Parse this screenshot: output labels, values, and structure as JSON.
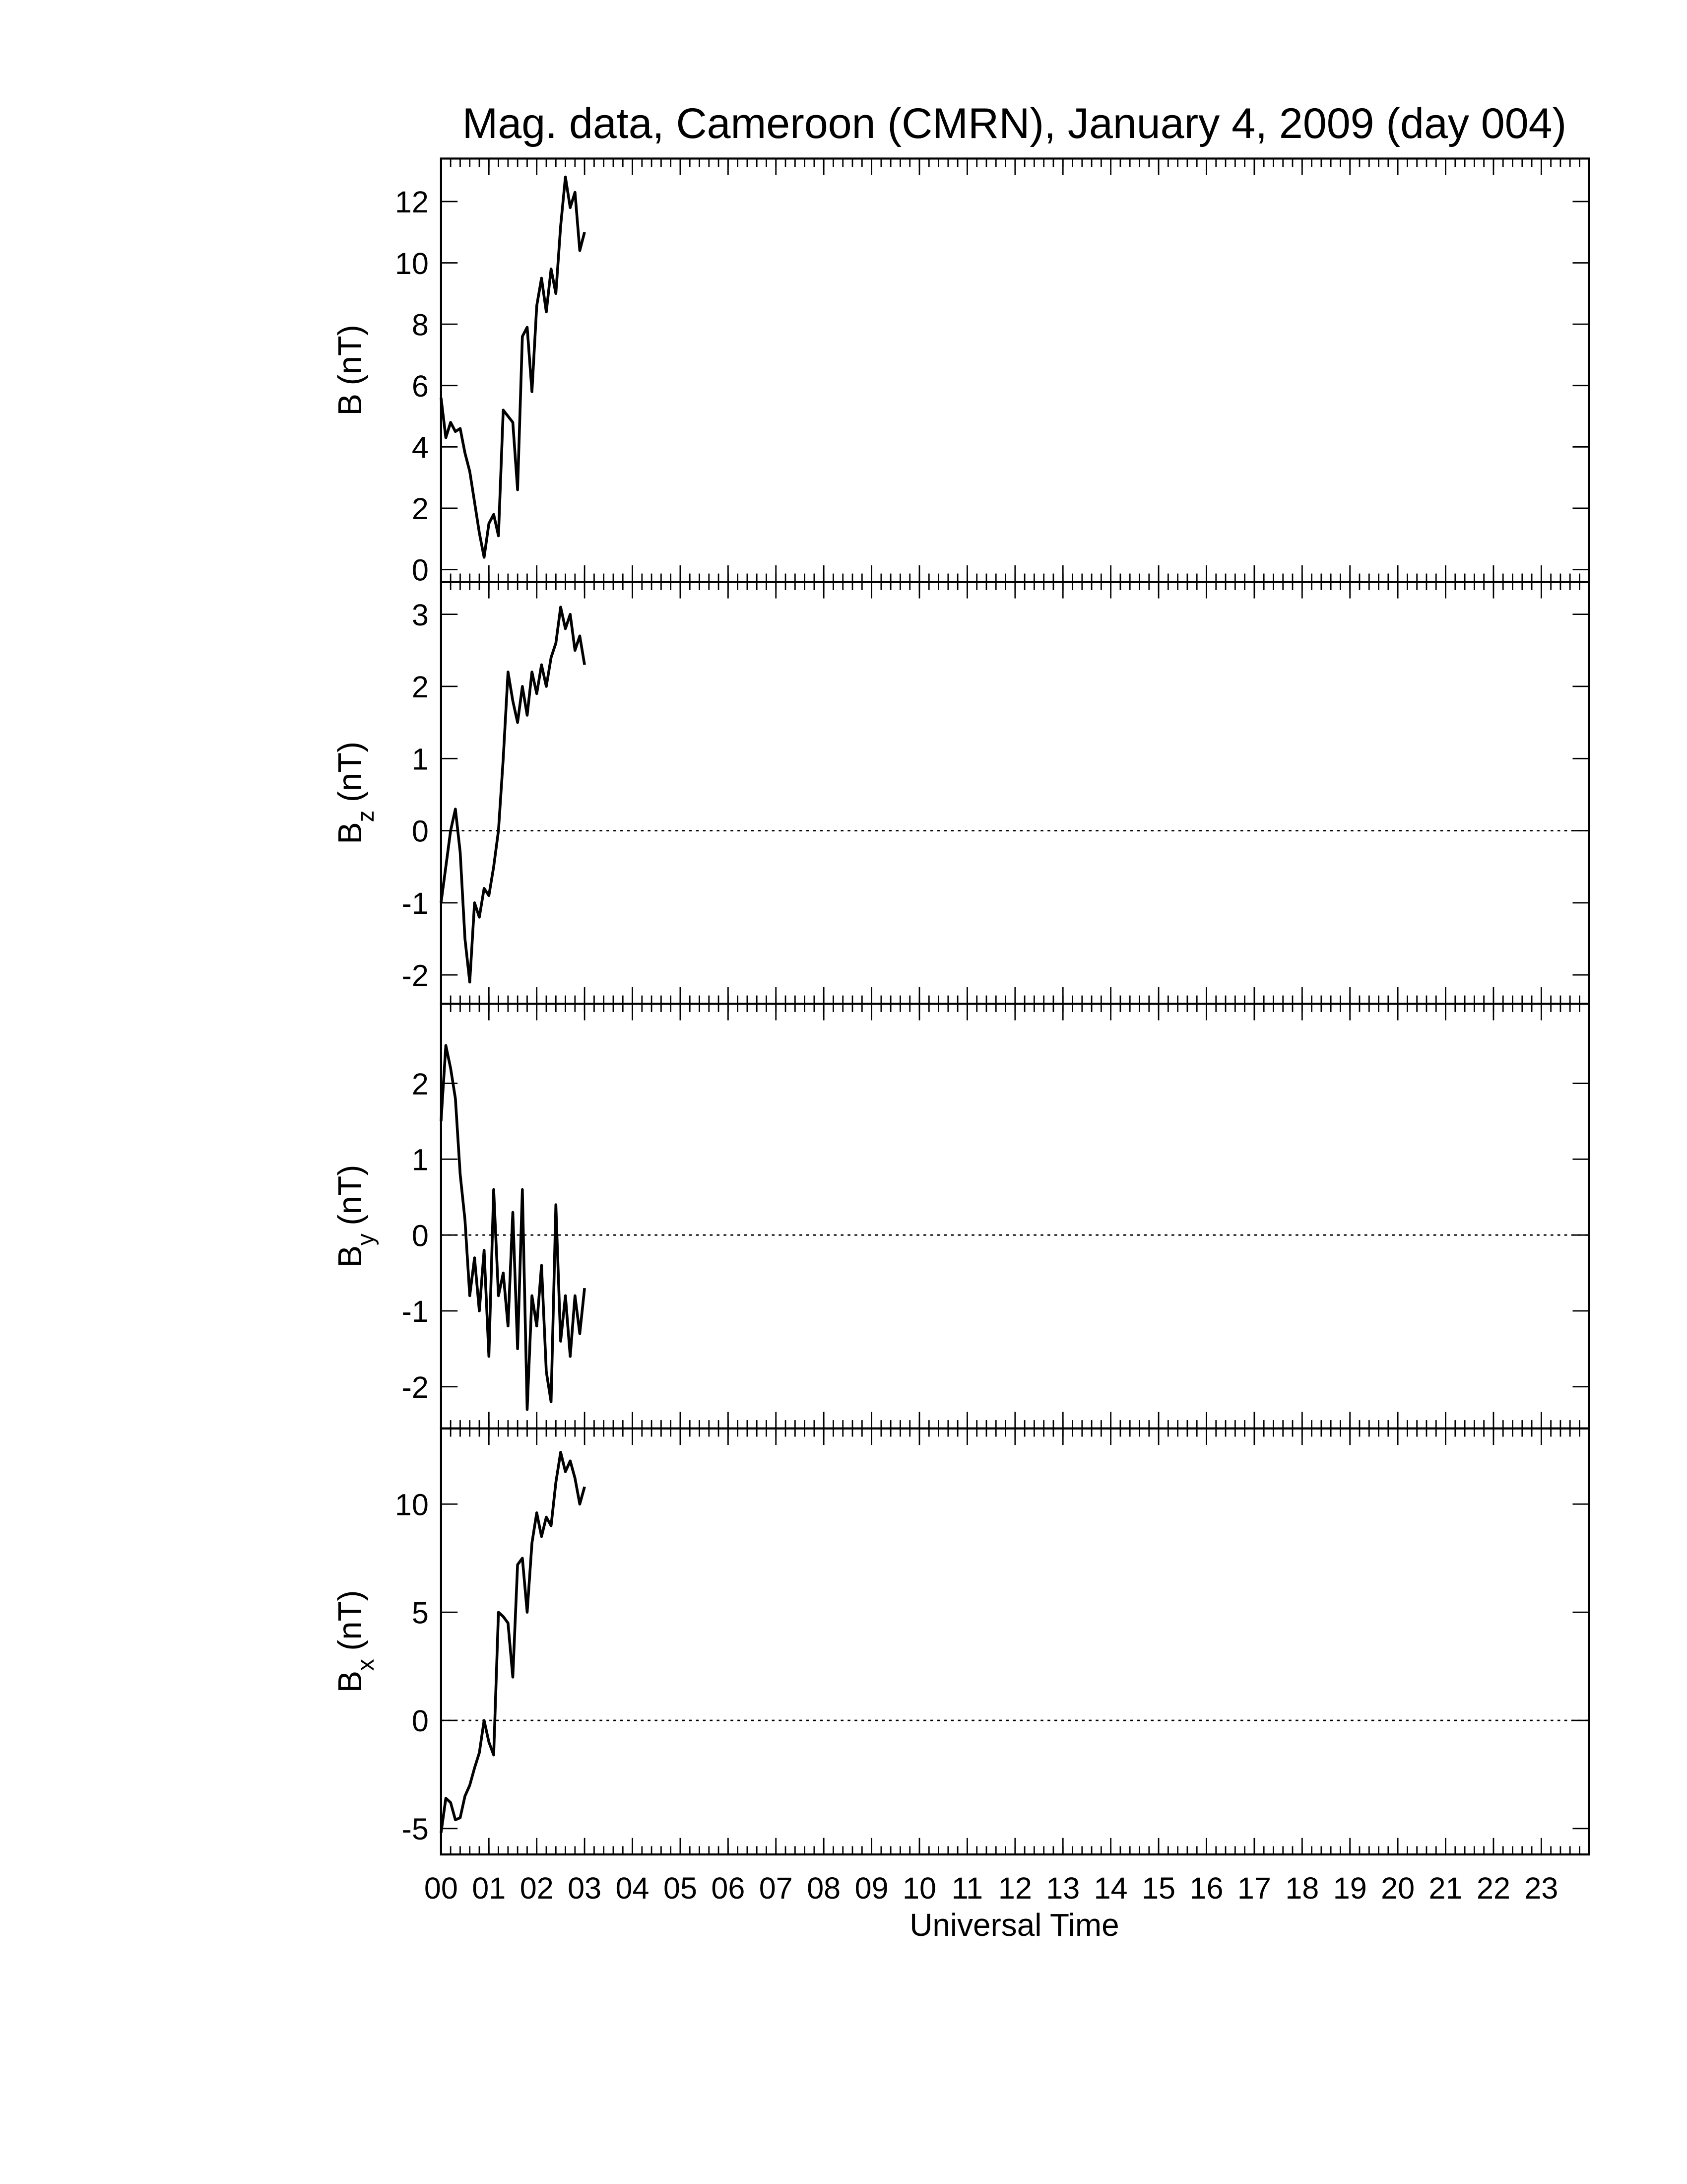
{
  "chart_data": [
    {
      "type": "line",
      "title": "Mag. data, Cameroon (CMRN), January 4, 2009 (day 004)",
      "ylabel_main": "B",
      "ylabel_unit": "(nT)",
      "xlim": [
        0,
        24
      ],
      "ylim": [
        -0.4,
        13.4
      ],
      "yticks": [
        0,
        2,
        4,
        6,
        8,
        10,
        12
      ],
      "x": [
        0,
        0.1,
        0.2,
        0.3,
        0.4,
        0.5,
        0.6,
        0.7,
        0.8,
        0.9,
        1.0,
        1.1,
        1.2,
        1.3,
        1.4,
        1.5,
        1.6,
        1.7,
        1.8,
        1.9,
        2.0,
        2.1,
        2.2,
        2.3,
        2.4,
        2.5,
        2.6,
        2.7,
        2.8,
        2.9,
        3.0
      ],
      "series": [
        {
          "color": "#000000",
          "values": [
            5.6,
            4.3,
            4.8,
            4.5,
            4.6,
            3.8,
            3.2,
            2.2,
            1.2,
            0.4,
            1.5,
            1.8,
            1.1,
            5.2,
            5.0,
            4.8,
            2.6,
            7.6,
            7.9,
            5.8,
            8.6,
            9.5,
            8.4,
            9.8,
            9.0,
            11.2,
            12.8,
            11.8,
            12.3,
            10.4,
            11.0
          ]
        }
      ]
    },
    {
      "type": "line",
      "ylabel_main": "B",
      "ylabel_sub": "z",
      "ylabel_unit": "(nT)",
      "xlim": [
        0,
        24
      ],
      "ylim": [
        -2.4,
        3.45
      ],
      "yticks": [
        -2,
        -1,
        0,
        1,
        2,
        3
      ],
      "hline": 0,
      "x": [
        0,
        0.1,
        0.2,
        0.3,
        0.4,
        0.5,
        0.6,
        0.7,
        0.8,
        0.9,
        1.0,
        1.1,
        1.2,
        1.3,
        1.4,
        1.5,
        1.6,
        1.7,
        1.8,
        1.9,
        2.0,
        2.1,
        2.2,
        2.3,
        2.4,
        2.5,
        2.6,
        2.7,
        2.8,
        2.9,
        3.0
      ],
      "series": [
        {
          "color": "#000000",
          "values": [
            -1.0,
            -0.5,
            0.0,
            0.3,
            -0.3,
            -1.5,
            -2.1,
            -1.0,
            -1.2,
            -0.8,
            -0.9,
            -0.5,
            0.0,
            1.0,
            2.2,
            1.8,
            1.5,
            2.0,
            1.6,
            2.2,
            1.9,
            2.3,
            2.0,
            2.4,
            2.6,
            3.1,
            2.8,
            3.0,
            2.5,
            2.7,
            2.3
          ]
        }
      ]
    },
    {
      "type": "line",
      "ylabel_main": "B",
      "ylabel_sub": "y",
      "ylabel_unit": "(nT)",
      "xlim": [
        0,
        24
      ],
      "ylim": [
        -2.55,
        3.05
      ],
      "yticks": [
        -2,
        -1,
        0,
        1,
        2
      ],
      "hline": 0,
      "x": [
        0,
        0.1,
        0.2,
        0.3,
        0.4,
        0.5,
        0.6,
        0.7,
        0.8,
        0.9,
        1.0,
        1.1,
        1.2,
        1.3,
        1.4,
        1.5,
        1.6,
        1.7,
        1.8,
        1.9,
        2.0,
        2.1,
        2.2,
        2.3,
        2.4,
        2.5,
        2.6,
        2.7,
        2.8,
        2.9,
        3.0
      ],
      "series": [
        {
          "color": "#000000",
          "values": [
            1.5,
            2.5,
            2.2,
            1.8,
            0.8,
            0.2,
            -0.8,
            -0.3,
            -1.0,
            -0.2,
            -1.6,
            0.6,
            -0.8,
            -0.5,
            -1.2,
            0.3,
            -1.5,
            0.6,
            -2.3,
            -0.8,
            -1.2,
            -0.4,
            -1.8,
            -2.2,
            0.4,
            -1.4,
            -0.8,
            -1.6,
            -0.8,
            -1.3,
            -0.7
          ]
        }
      ]
    },
    {
      "type": "line",
      "ylabel_main": "B",
      "ylabel_sub": "x",
      "ylabel_unit": "(nT)",
      "xlabel": "Universal Time",
      "xlim": [
        0,
        24
      ],
      "ylim": [
        -6.2,
        13.5
      ],
      "yticks": [
        -5,
        0,
        5,
        10
      ],
      "hline": 0,
      "xminor_step": 0.2,
      "xticks": [
        {
          "value": 0,
          "label": "00"
        },
        {
          "value": 1,
          "label": "01"
        },
        {
          "value": 2,
          "label": "02"
        },
        {
          "value": 3,
          "label": "03"
        },
        {
          "value": 4,
          "label": "04"
        },
        {
          "value": 5,
          "label": "05"
        },
        {
          "value": 6,
          "label": "06"
        },
        {
          "value": 7,
          "label": "07"
        },
        {
          "value": 8,
          "label": "08"
        },
        {
          "value": 9,
          "label": "09"
        },
        {
          "value": 10,
          "label": "10"
        },
        {
          "value": 11,
          "label": "11"
        },
        {
          "value": 12,
          "label": "12"
        },
        {
          "value": 13,
          "label": "13"
        },
        {
          "value": 14,
          "label": "14"
        },
        {
          "value": 15,
          "label": "15"
        },
        {
          "value": 16,
          "label": "16"
        },
        {
          "value": 17,
          "label": "17"
        },
        {
          "value": 18,
          "label": "18"
        },
        {
          "value": 19,
          "label": "19"
        },
        {
          "value": 20,
          "label": "20"
        },
        {
          "value": 21,
          "label": "21"
        },
        {
          "value": 22,
          "label": "22"
        },
        {
          "value": 23,
          "label": "23"
        }
      ],
      "x": [
        0,
        0.1,
        0.2,
        0.3,
        0.4,
        0.5,
        0.6,
        0.7,
        0.8,
        0.9,
        1.0,
        1.1,
        1.2,
        1.3,
        1.4,
        1.5,
        1.6,
        1.7,
        1.8,
        1.9,
        2.0,
        2.1,
        2.2,
        2.3,
        2.4,
        2.5,
        2.6,
        2.7,
        2.8,
        2.9,
        3.0
      ],
      "series": [
        {
          "color": "#000000",
          "values": [
            -5.2,
            -3.6,
            -3.8,
            -4.6,
            -4.5,
            -3.5,
            -3.0,
            -2.2,
            -1.5,
            0.0,
            -1.0,
            -1.6,
            5.0,
            4.8,
            4.5,
            2.0,
            7.2,
            7.5,
            5.0,
            8.2,
            9.6,
            8.5,
            9.4,
            9.0,
            11.0,
            12.4,
            11.5,
            12.0,
            11.2,
            10.0,
            10.8
          ]
        }
      ]
    }
  ]
}
